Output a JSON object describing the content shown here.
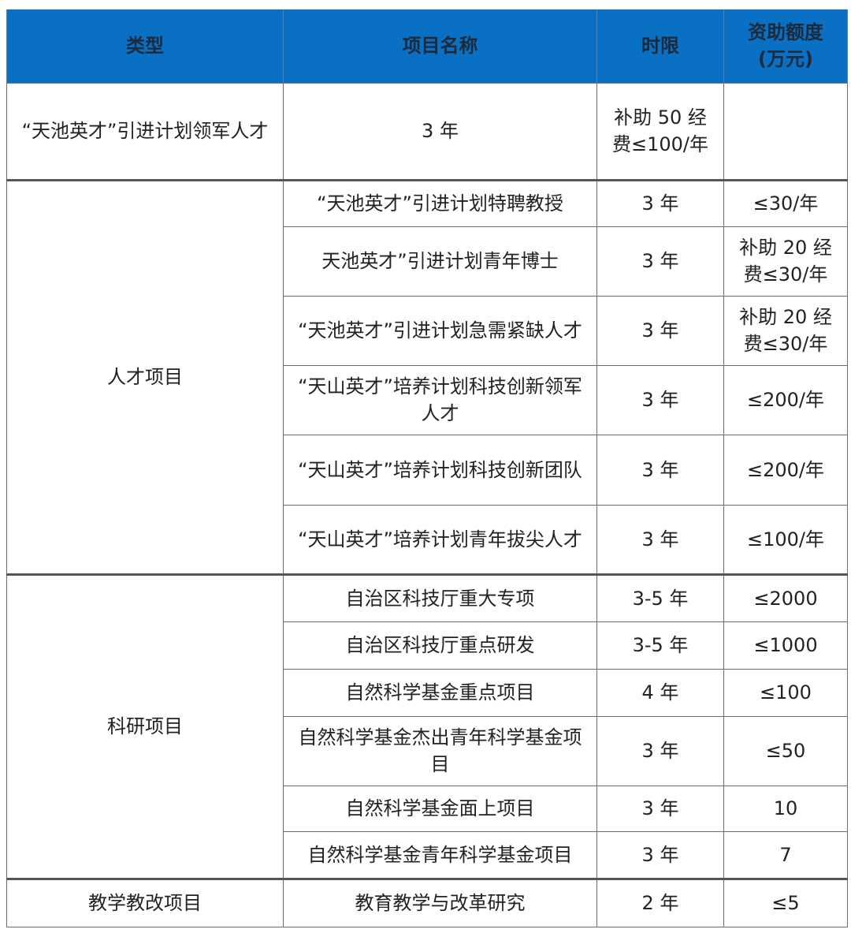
{
  "header_color": "#0a70c4",
  "columns": [
    "类型",
    "项目名称",
    "时限",
    "资助额度\n(万元)"
  ],
  "rows": [
    {
      "type": "“天池英才”引进计划领军人才",
      "name": "3 年",
      "period": "补助 50 经费≤100/年",
      "amount": ""
    },
    {
      "type": "人才项目",
      "name": "“天池英才”引进计划特聘教授",
      "period": "3 年",
      "amount": "≤30/年"
    },
    {
      "name": "天池英才”引进计划青年博士",
      "period": "3 年",
      "amount": "补助 20 经费≤30/年"
    },
    {
      "name": "“天池英才”引进计划急需紧缺人才",
      "period": "3 年",
      "amount": "补助 20 经费≤30/年"
    },
    {
      "name": "“天山英才”培养计划科技创新领军人才",
      "period": "3 年",
      "amount": "≤200/年"
    },
    {
      "name": "“天山英才”培养计划科技创新团队",
      "period": "3 年",
      "amount": "≤200/年"
    },
    {
      "name": "“天山英才”培养计划青年拔尖人才",
      "period": "3 年",
      "amount": "≤100/年"
    },
    {
      "type": "科研项目",
      "name": "自治区科技厅重大专项",
      "period": "3-5 年",
      "amount": "≤2000"
    },
    {
      "name": "自治区科技厅重点研发",
      "period": "3-5 年",
      "amount": "≤1000"
    },
    {
      "name": "自然科学基金重点项目",
      "period": "4 年",
      "amount": "≤100"
    },
    {
      "name": "自然科学基金杰出青年科学基金项目",
      "period": "3 年",
      "amount": "≤50"
    },
    {
      "name": "自然科学基金面上项目",
      "period": "3 年",
      "amount": "10"
    },
    {
      "name": "自然科学基金青年科学基金项目",
      "period": "3 年",
      "amount": "7"
    },
    {
      "type": "教学教改项目",
      "name": "教育教学与改革研究",
      "period": "2 年",
      "amount": "≤5"
    }
  ]
}
